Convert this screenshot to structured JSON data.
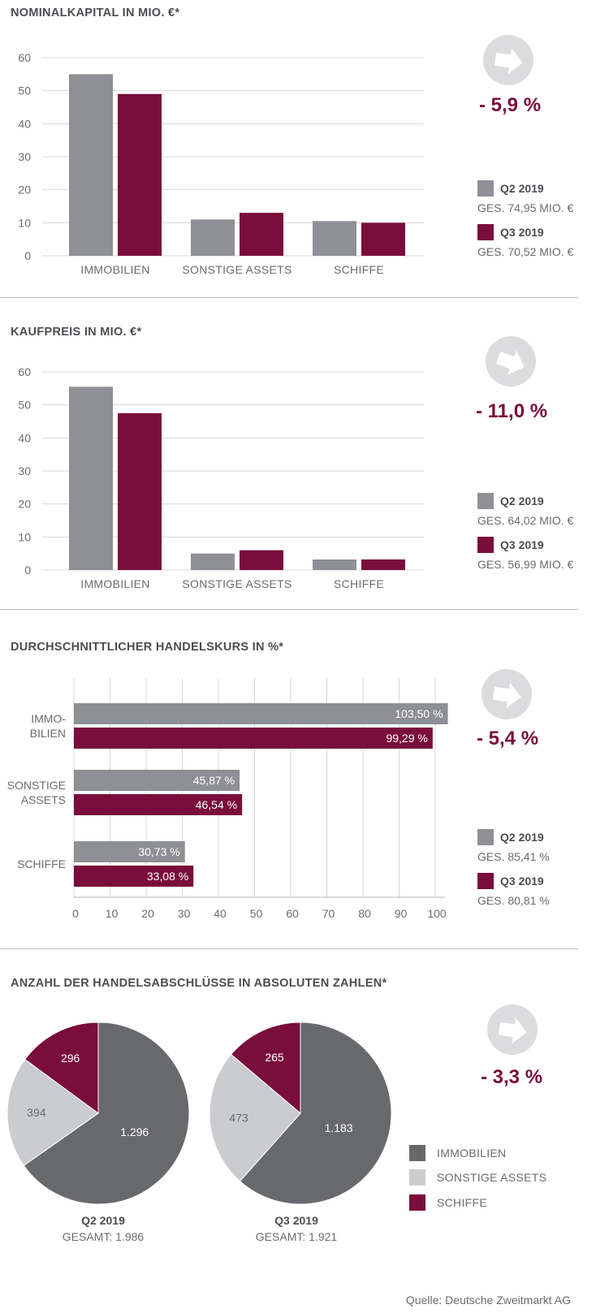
{
  "colors": {
    "q2": "#8f9095",
    "q3": "#7a0d3b",
    "immobilien": "#68696d",
    "sonstige": "#cbcccf",
    "schiffe": "#7a0d3b",
    "arrow_bg": "#dcdcde",
    "grid": "#d8d8da"
  },
  "source": "Quelle: Deutsche Zweitmarkt AG",
  "chart_data": [
    {
      "type": "bar",
      "title": "NOMINALKAPITAL IN MIO. €*",
      "categories": [
        "IMMOBILIEN",
        "SONSTIGE ASSETS",
        "SCHIFFE"
      ],
      "series": [
        {
          "name": "Q2 2019",
          "values": [
            55,
            11,
            10.5
          ]
        },
        {
          "name": "Q3 2019",
          "values": [
            49,
            13,
            10
          ]
        }
      ],
      "ylim": [
        0,
        60
      ],
      "yticks": [
        0,
        10,
        20,
        30,
        40,
        50,
        60
      ],
      "change": "- 5,9 %",
      "legend": [
        {
          "name": "Q2 2019",
          "total": "GES. 74,95 MIO. €"
        },
        {
          "name": "Q3 2019",
          "total": "GES. 70,52 MIO. €"
        }
      ]
    },
    {
      "type": "bar",
      "title": "KAUFPREIS IN MIO. €*",
      "categories": [
        "IMMOBILIEN",
        "SONSTIGE ASSETS",
        "SCHIFFE"
      ],
      "series": [
        {
          "name": "Q2 2019",
          "values": [
            55.5,
            5,
            3.2
          ]
        },
        {
          "name": "Q3 2019",
          "values": [
            47.5,
            6,
            3.2
          ]
        }
      ],
      "ylim": [
        0,
        60
      ],
      "yticks": [
        0,
        10,
        20,
        30,
        40,
        50,
        60
      ],
      "change": "- 11,0 %",
      "legend": [
        {
          "name": "Q2 2019",
          "total": "GES. 64,02 MIO. €"
        },
        {
          "name": "Q3 2019",
          "total": "GES. 56,99 MIO. €"
        }
      ]
    },
    {
      "type": "bar",
      "orientation": "horizontal",
      "title": "DURCHSCHNITTLICHER HANDELSKURS IN %*",
      "categories": [
        [
          "IMMO-",
          "BILIEN"
        ],
        [
          "SONSTIGE",
          "ASSETS"
        ],
        [
          "SCHIFFE"
        ]
      ],
      "series": [
        {
          "name": "Q2 2019",
          "values": [
            103.5,
            45.87,
            30.73
          ],
          "labels": [
            "103,50 %",
            "45,87 %",
            "30,73 %"
          ]
        },
        {
          "name": "Q3 2019",
          "values": [
            99.29,
            46.54,
            33.08
          ],
          "labels": [
            "99,29 %",
            "46,54 %",
            "33,08 %"
          ]
        }
      ],
      "xlim": [
        0,
        100
      ],
      "xticks": [
        0,
        10,
        20,
        30,
        40,
        50,
        60,
        70,
        80,
        90,
        100
      ],
      "change": "- 5,4 %",
      "legend": [
        {
          "name": "Q2 2019",
          "total": "GES. 85,41 %"
        },
        {
          "name": "Q3 2019",
          "total": "GES. 80,81 %"
        }
      ]
    },
    {
      "type": "pie",
      "title": "ANZAHL DER HANDELSABSCHLÜSSE IN ABSOLUTEN ZAHLEN*",
      "categories": [
        "IMMOBILIEN",
        "SONSTIGE ASSETS",
        "SCHIFFE"
      ],
      "pies": [
        {
          "name": "Q2 2019",
          "total": "GESAMT: 1.986",
          "values": [
            1296,
            394,
            296
          ],
          "labels": [
            "1.296",
            "394",
            "296"
          ]
        },
        {
          "name": "Q3 2019",
          "total": "GESAMT: 1.921",
          "values": [
            1183,
            473,
            265
          ],
          "labels": [
            "1.183",
            "473",
            "265"
          ]
        }
      ],
      "change": "- 3,3 %"
    }
  ]
}
